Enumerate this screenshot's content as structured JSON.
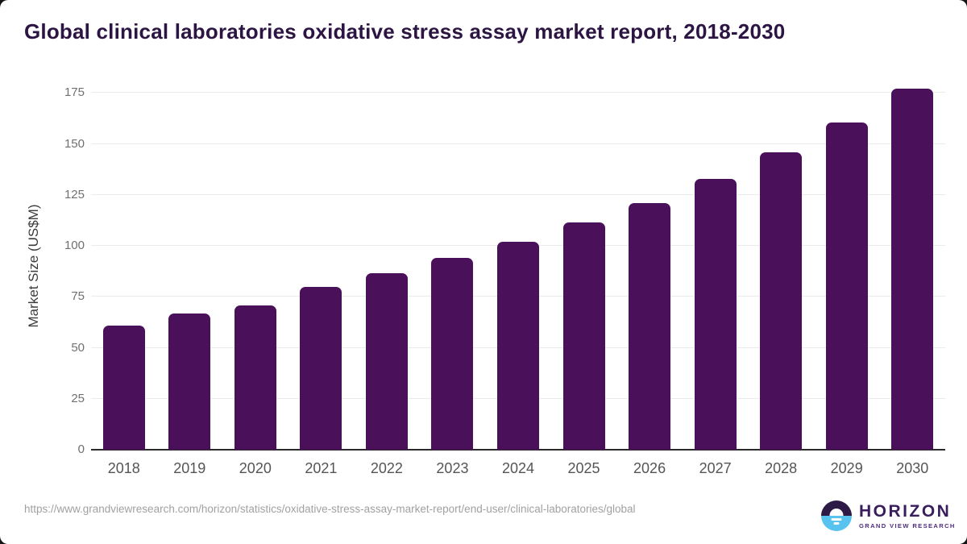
{
  "title": "Global clinical laboratories oxidative stress assay market report, 2018-2030",
  "source_url": "https://www.grandviewresearch.com/horizon/statistics/oxidative-stress-assay-market-report/end-user/clinical-laboratories/global",
  "logo": {
    "wordmark": "HORIZON",
    "subtext": "GRAND VIEW RESEARCH"
  },
  "colors": {
    "bar": "#4A1059",
    "title_text": "#2D1543",
    "gridline": "#EBEBEB",
    "axis_line": "#2B2B2B",
    "y_tick_text": "#707070",
    "x_tick_text": "#555555",
    "url_text": "#A1A1A1",
    "logo_purple": "#2E1A47",
    "logo_blue": "#58C3EE"
  },
  "chart_data": {
    "type": "bar",
    "title": "Global clinical laboratories oxidative stress assay market report, 2018-2030",
    "xlabel": "",
    "ylabel": "Market Size (US$M)",
    "categories": [
      "2018",
      "2019",
      "2020",
      "2021",
      "2022",
      "2023",
      "2024",
      "2025",
      "2026",
      "2027",
      "2028",
      "2029",
      "2030"
    ],
    "values": [
      61.0,
      67.0,
      70.6,
      80.0,
      86.6,
      94.0,
      102.1,
      111.6,
      121.2,
      133.0,
      145.9,
      160.5,
      177.1
    ],
    "ylim": [
      0,
      175
    ],
    "yticks": [
      0,
      25,
      50,
      75,
      100,
      125,
      150,
      175
    ],
    "grid": true,
    "legend": false,
    "bar_color": "#4A1059"
  }
}
